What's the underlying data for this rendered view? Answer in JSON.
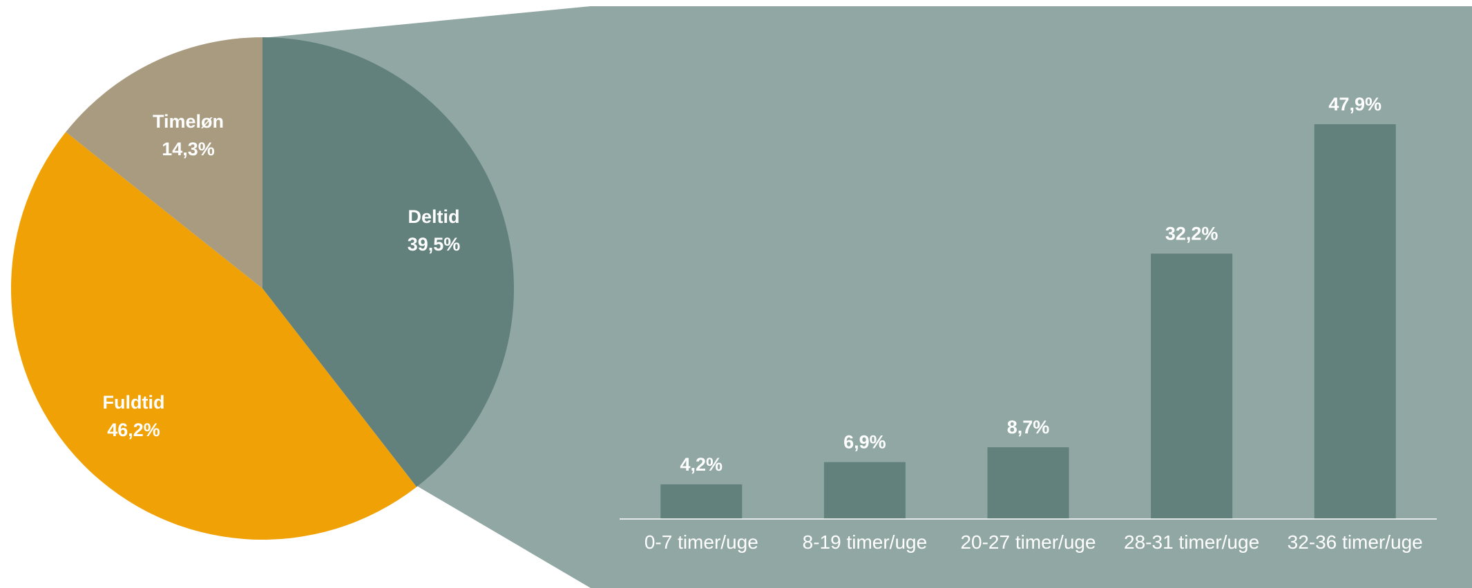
{
  "colors": {
    "panel": "#90A7A3",
    "bar": "#62817D",
    "deltid": "#62817D",
    "fuldtid": "#F0A105",
    "timeloen": "#A99B80",
    "text": "#FFFFFF",
    "axis": "#FFFFFF"
  },
  "chart_data": [
    {
      "type": "pie",
      "title": "",
      "slices": [
        {
          "label": "Deltid",
          "value_label": "39,5%",
          "value": 39.5,
          "color": "#62817D"
        },
        {
          "label": "Fuldtid",
          "value_label": "46,2%",
          "value": 46.2,
          "color": "#F0A105"
        },
        {
          "label": "Timeløn",
          "value_label": "14,3%",
          "value": 14.3,
          "color": "#A99B80"
        }
      ],
      "start_angle_deg": 0,
      "direction": "clockwise"
    },
    {
      "type": "bar",
      "title": "",
      "xlabel": "",
      "ylabel": "",
      "breakdown_of": "Deltid",
      "categories": [
        "0-7 timer/uge",
        "8-19 timer/uge",
        "20-27 timer/uge",
        "28-31 timer/uge",
        "32-36 timer/uge"
      ],
      "values": [
        4.2,
        6.9,
        8.7,
        32.2,
        47.9
      ],
      "value_labels": [
        "4,2%",
        "6,9%",
        "8,7%",
        "32,2%",
        "47,9%"
      ],
      "ylim": [
        0,
        55
      ],
      "grid": false,
      "legend": "none"
    }
  ]
}
